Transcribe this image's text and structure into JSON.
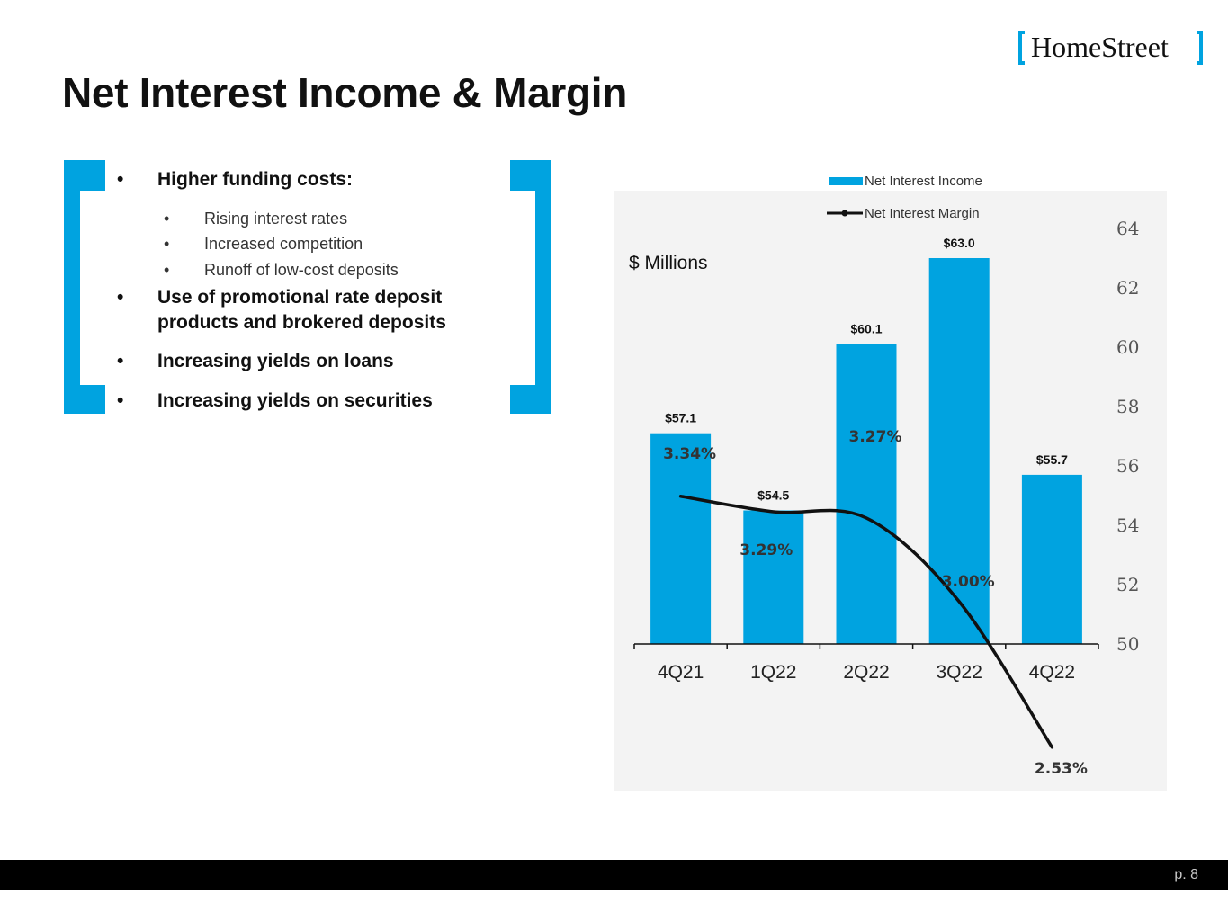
{
  "slide": {
    "title": "Net Interest Income & Margin",
    "page": "p. 8"
  },
  "logo": {
    "text": "HomeStreet"
  },
  "colors": {
    "accent": "#00a3e0",
    "line": "#111111",
    "panel": "#f3f3f3",
    "footer": "#000000"
  },
  "bullets": [
    {
      "level": 1,
      "bullet": "•",
      "text": "Higher funding costs:"
    },
    {
      "level": 2,
      "bullet": "•",
      "text": "Rising interest rates"
    },
    {
      "level": 2,
      "bullet": "•",
      "text": "Increased competition"
    },
    {
      "level": 2,
      "bullet": "•",
      "text": "Runoff of low-cost deposits"
    },
    {
      "level": 1,
      "bullet": "•",
      "text": "Use of promotional rate deposit products and brokered deposits"
    },
    {
      "level": 1,
      "bullet": "•",
      "text": "Increasing yields on loans"
    },
    {
      "level": 1,
      "bullet": "•",
      "text": "Increasing yields on securities"
    }
  ],
  "chart_data": {
    "type": "bar",
    "categories": [
      "4Q21",
      "1Q22",
      "2Q22",
      "3Q22",
      "4Q22"
    ],
    "series": [
      {
        "name": "Net Interest Income",
        "kind": "bar",
        "axis": "left",
        "values": [
          57.1,
          54.5,
          60.1,
          63.0,
          55.7
        ],
        "labels": [
          "$57.1",
          "$54.5",
          "$60.1",
          "$63.0",
          "$55.7"
        ]
      },
      {
        "name": "Net Interest Margin",
        "kind": "line",
        "axis": "right",
        "values": [
          3.34,
          3.29,
          3.27,
          3.0,
          2.53
        ],
        "labels": [
          "3.34%",
          "3.29%",
          "3.27%",
          "3.00%",
          "2.53%"
        ]
      }
    ],
    "ylabel": "$ Millions",
    "y_right_ticks": [
      "50",
      "52",
      "54",
      "56",
      "58",
      "60",
      "62",
      "64"
    ],
    "y_right_range": [
      50,
      64
    ],
    "legend_position": "top",
    "grid": false
  }
}
